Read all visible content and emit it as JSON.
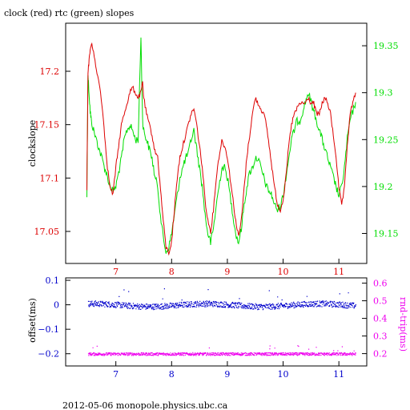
{
  "title": "clock (red) rtc (green) slopes",
  "footer": "2012-05-06  monopole.physics.ubc.ca",
  "colors": {
    "clock": "#dd0000",
    "rtc": "#00dd00",
    "offset": "#0000cc",
    "rndtrip": "#ee00ee",
    "axis": "#000000"
  },
  "chart_data": [
    {
      "type": "line",
      "title": "clock (red) rtc (green) slopes",
      "xlabel": "",
      "xlim": [
        6.1,
        11.5
      ],
      "x_ticks": [
        7,
        8,
        9,
        10,
        11
      ],
      "y_left": {
        "label": "clockslope",
        "lim": [
          17.02,
          17.245
        ],
        "ticks": [
          "17.05",
          "17.1",
          "17.15",
          "17.2"
        ]
      },
      "y_right": {
        "label": "",
        "lim": [
          19.118,
          19.374
        ],
        "ticks": [
          "19.15",
          "19.2",
          "19.25",
          "19.3",
          "19.35"
        ]
      },
      "series": [
        {
          "name": "clock",
          "axis": "left",
          "x": [
            6.48,
            6.5,
            6.52,
            6.54,
            6.56,
            6.6,
            6.65,
            6.7,
            6.75,
            6.8,
            6.85,
            6.9,
            6.95,
            7.0,
            7.05,
            7.1,
            7.15,
            7.2,
            7.25,
            7.3,
            7.35,
            7.4,
            7.45,
            7.48,
            7.5,
            7.55,
            7.6,
            7.65,
            7.7,
            7.75,
            7.8,
            7.85,
            7.9,
            7.95,
            8.0,
            8.05,
            8.1,
            8.15,
            8.2,
            8.25,
            8.3,
            8.35,
            8.4,
            8.45,
            8.5,
            8.55,
            8.6,
            8.65,
            8.7,
            8.75,
            8.8,
            8.85,
            8.9,
            8.95,
            9.0,
            9.05,
            9.1,
            9.15,
            9.2,
            9.25,
            9.3,
            9.35,
            9.4,
            9.45,
            9.5,
            9.55,
            9.6,
            9.65,
            9.7,
            9.75,
            9.8,
            9.85,
            9.9,
            9.95,
            10.0,
            10.05,
            10.1,
            10.15,
            10.2,
            10.25,
            10.3,
            10.35,
            10.4,
            10.45,
            10.5,
            10.55,
            10.6,
            10.65,
            10.7,
            10.75,
            10.8,
            10.85,
            10.9,
            10.95,
            11.0,
            11.05,
            11.1,
            11.15,
            11.2,
            11.25,
            11.3
          ],
          "y": [
            17.09,
            17.2,
            17.21,
            17.22,
            17.225,
            17.22,
            17.2,
            17.19,
            17.17,
            17.14,
            17.11,
            17.09,
            17.085,
            17.11,
            17.13,
            17.15,
            17.16,
            17.17,
            17.18,
            17.185,
            17.18,
            17.175,
            17.18,
            17.19,
            17.175,
            17.16,
            17.15,
            17.14,
            17.125,
            17.12,
            17.09,
            17.06,
            17.035,
            17.03,
            17.04,
            17.07,
            17.1,
            17.12,
            17.13,
            17.14,
            17.15,
            17.16,
            17.165,
            17.15,
            17.13,
            17.11,
            17.08,
            17.06,
            17.05,
            17.07,
            17.1,
            17.12,
            17.135,
            17.13,
            17.12,
            17.1,
            17.08,
            17.06,
            17.045,
            17.06,
            17.09,
            17.12,
            17.14,
            17.16,
            17.175,
            17.17,
            17.165,
            17.16,
            17.15,
            17.13,
            17.11,
            17.09,
            17.075,
            17.07,
            17.08,
            17.1,
            17.13,
            17.15,
            17.16,
            17.165,
            17.17,
            17.17,
            17.17,
            17.175,
            17.17,
            17.17,
            17.16,
            17.16,
            17.17,
            17.175,
            17.17,
            17.16,
            17.14,
            17.12,
            17.09,
            17.075,
            17.09,
            17.13,
            17.16,
            17.17,
            17.18
          ]
        },
        {
          "name": "rtc",
          "axis": "right",
          "x": [
            6.48,
            6.5,
            6.52,
            6.54,
            6.56,
            6.6,
            6.65,
            6.7,
            6.75,
            6.8,
            6.85,
            6.9,
            6.95,
            7.0,
            7.05,
            7.1,
            7.15,
            7.2,
            7.25,
            7.3,
            7.35,
            7.4,
            7.45,
            7.48,
            7.5,
            7.55,
            7.6,
            7.65,
            7.7,
            7.75,
            7.8,
            7.85,
            7.9,
            7.95,
            8.0,
            8.05,
            8.1,
            8.15,
            8.2,
            8.25,
            8.3,
            8.35,
            8.4,
            8.45,
            8.5,
            8.55,
            8.6,
            8.65,
            8.7,
            8.75,
            8.8,
            8.85,
            8.9,
            8.95,
            9.0,
            9.05,
            9.1,
            9.15,
            9.2,
            9.25,
            9.3,
            9.35,
            9.4,
            9.45,
            9.5,
            9.55,
            9.6,
            9.65,
            9.7,
            9.75,
            9.8,
            9.85,
            9.9,
            9.95,
            10.0,
            10.05,
            10.1,
            10.15,
            10.2,
            10.25,
            10.3,
            10.35,
            10.4,
            10.45,
            10.5,
            10.55,
            10.6,
            10.65,
            10.7,
            10.75,
            10.8,
            10.85,
            10.9,
            10.95,
            11.0,
            11.05,
            11.1,
            11.15,
            11.2,
            11.25,
            11.3
          ],
          "y": [
            19.19,
            19.32,
            19.3,
            19.28,
            19.27,
            19.26,
            19.25,
            19.24,
            19.23,
            19.22,
            19.21,
            19.2,
            19.195,
            19.2,
            19.215,
            19.23,
            19.25,
            19.26,
            19.265,
            19.26,
            19.25,
            19.25,
            19.36,
            19.27,
            19.26,
            19.25,
            19.24,
            19.23,
            19.21,
            19.2,
            19.17,
            19.145,
            19.13,
            19.135,
            19.15,
            19.17,
            19.19,
            19.21,
            19.22,
            19.23,
            19.235,
            19.25,
            19.26,
            19.24,
            19.22,
            19.2,
            19.17,
            19.15,
            19.14,
            19.155,
            19.18,
            19.2,
            19.22,
            19.22,
            19.21,
            19.19,
            19.17,
            19.15,
            19.14,
            19.155,
            19.18,
            19.2,
            19.215,
            19.22,
            19.23,
            19.23,
            19.22,
            19.21,
            19.2,
            19.195,
            19.19,
            19.18,
            19.175,
            19.18,
            19.19,
            19.21,
            19.23,
            19.25,
            19.26,
            19.27,
            19.27,
            19.28,
            19.29,
            19.3,
            19.29,
            19.28,
            19.27,
            19.26,
            19.25,
            19.24,
            19.23,
            19.22,
            19.21,
            19.2,
            19.19,
            19.2,
            19.22,
            19.25,
            19.27,
            19.28,
            19.29
          ]
        }
      ]
    },
    {
      "type": "scatter",
      "xlim": [
        6.1,
        11.5
      ],
      "x_ticks": [
        7,
        8,
        9,
        10,
        11
      ],
      "y_left": {
        "label": "offset(ms)",
        "lim": [
          -0.25,
          0.11
        ],
        "ticks": [
          "0.1",
          "0",
          "−0.1",
          "−0.2"
        ]
      },
      "y_right": {
        "label": "rnd-trip(ms)",
        "lim": [
          0.13,
          0.63
        ],
        "ticks": [
          "0.6",
          "0.5",
          "0.4",
          "0.3",
          "0.2"
        ]
      },
      "series": [
        {
          "name": "offset",
          "axis": "left",
          "level": 0.0,
          "spread": 0.012
        },
        {
          "name": "rnd-trip",
          "axis": "right",
          "level": 0.2,
          "spread": 0.008
        }
      ]
    }
  ]
}
